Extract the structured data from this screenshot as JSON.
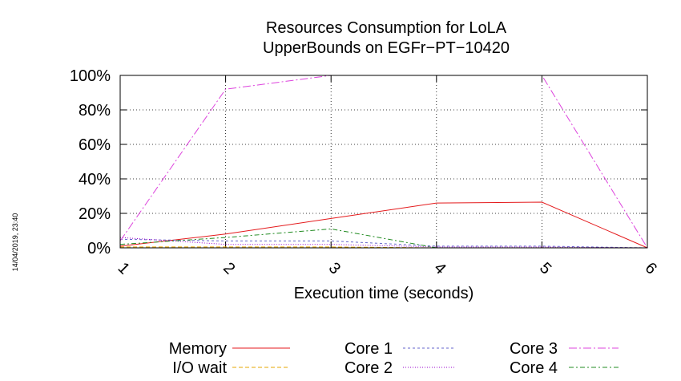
{
  "chart_data": {
    "type": "line",
    "title": [
      "Resources Consumption for LoLA",
      "UpperBounds on EGFr−PT−10420"
    ],
    "xlabel": "Execution time (seconds)",
    "ylabel": "",
    "x": [
      1,
      2,
      3,
      4,
      5,
      6
    ],
    "x_ticks": [
      "1",
      "2",
      "3",
      "4",
      "5",
      "6"
    ],
    "xlim": [
      1,
      6
    ],
    "y_ticks": [
      "0%",
      "20%",
      "40%",
      "60%",
      "80%",
      "100%"
    ],
    "ylim": [
      0,
      100
    ],
    "grid": true,
    "legend_position": "bottom",
    "series": [
      {
        "name": "Memory",
        "color": "#e41a1c",
        "dash": "",
        "values": [
          1,
          8,
          17,
          26,
          26.5,
          0
        ]
      },
      {
        "name": "I/O wait",
        "color": "#e6a700",
        "dash": "5,3",
        "values": [
          0.5,
          0.5,
          0.5,
          0,
          0,
          0
        ]
      },
      {
        "name": "Core 1",
        "color": "#6666cc",
        "dash": "3,3",
        "values": [
          5,
          4,
          4,
          1,
          1,
          0
        ]
      },
      {
        "name": "Core 2",
        "color": "#9900cc",
        "dash": "1,2",
        "values": [
          6,
          2,
          2,
          0.5,
          0.5,
          0
        ]
      },
      {
        "name": "Core 3",
        "color": "#dd44dd",
        "dash": "10,3,2,3",
        "values": [
          4,
          92,
          100,
          100,
          100,
          0
        ]
      },
      {
        "name": "Core 4",
        "color": "#228b22",
        "dash": "6,3,2,3",
        "values": [
          2,
          6,
          11,
          0,
          0,
          0
        ]
      }
    ]
  },
  "timestamp": "14/04/2019, 23:40"
}
